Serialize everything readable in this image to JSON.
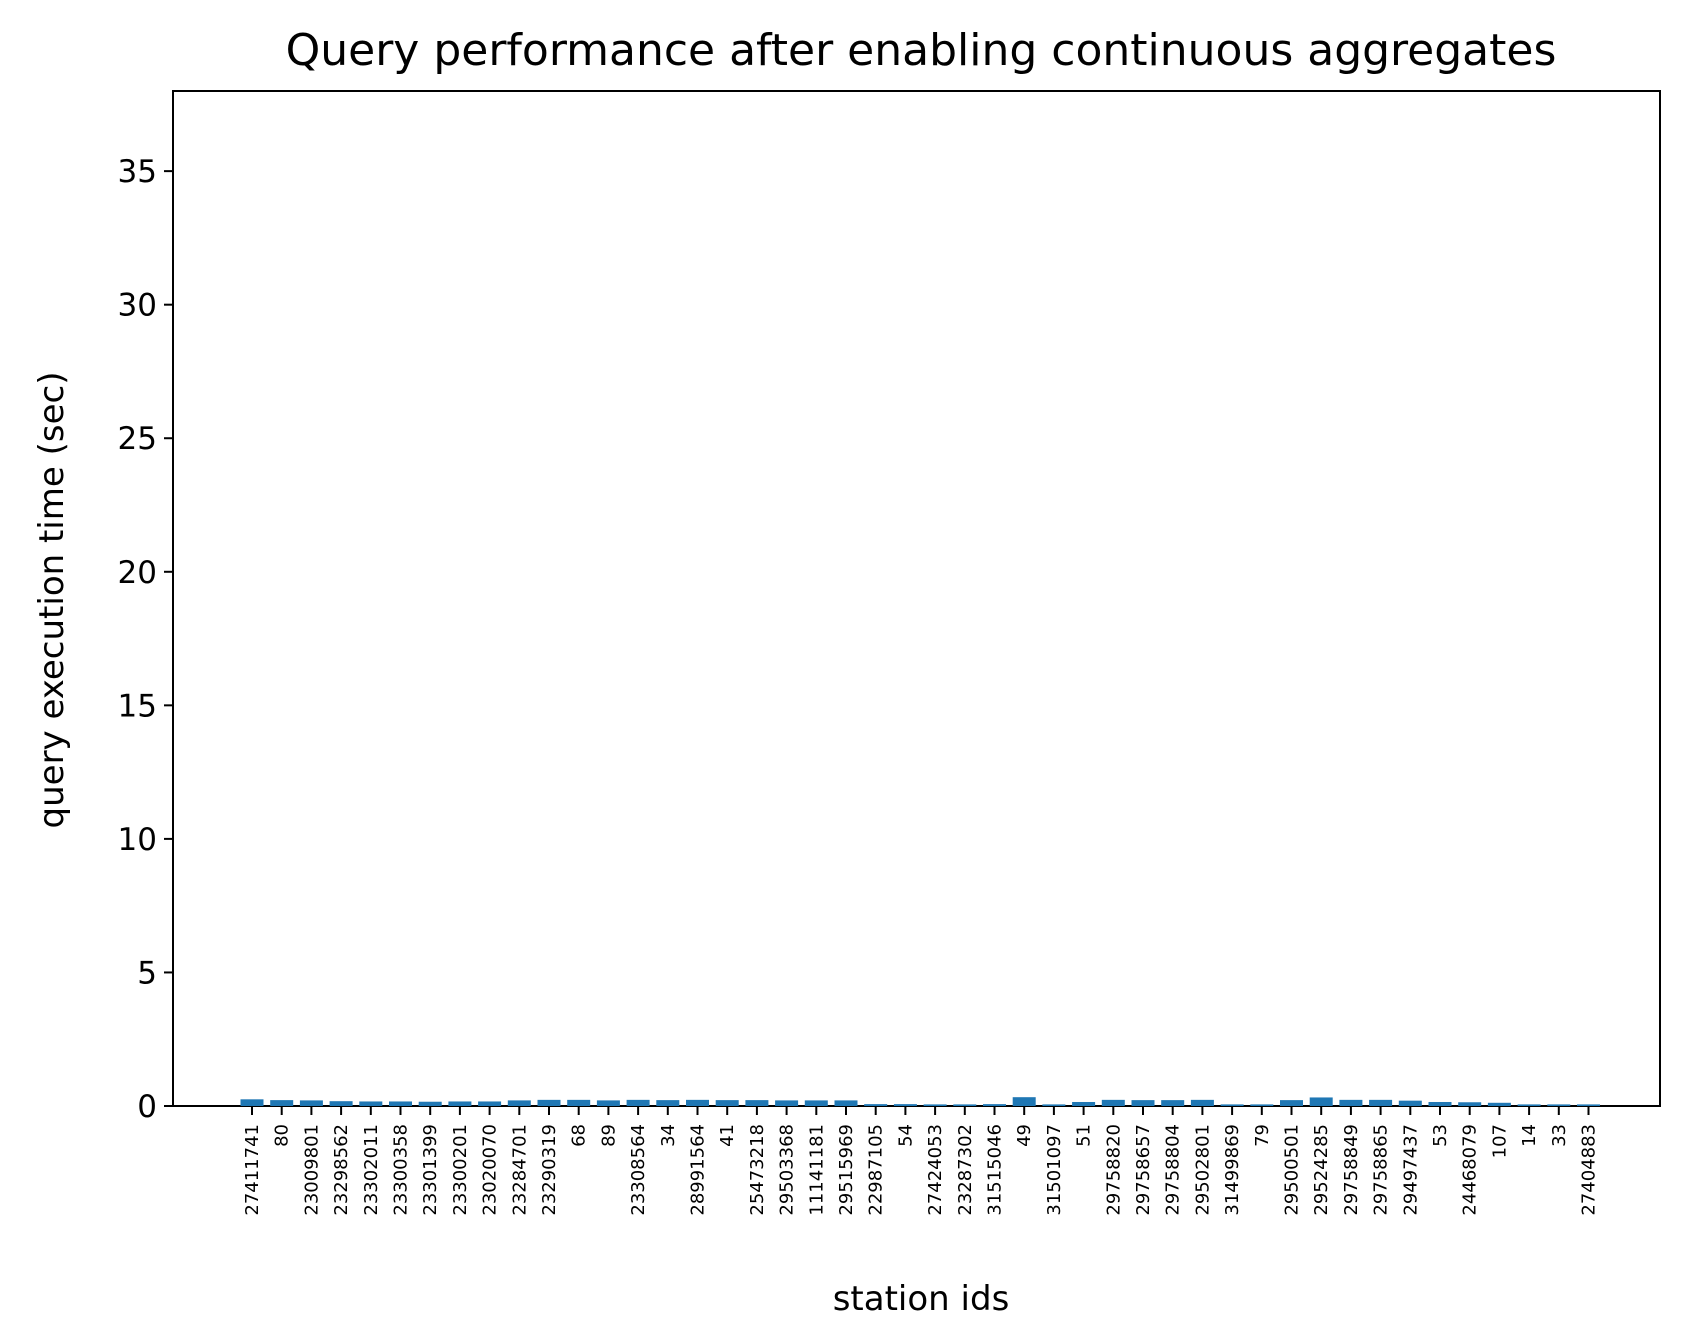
{
  "chart_data": {
    "type": "bar",
    "title": "Query performance after enabling continuous aggregates",
    "xlabel": "station ids",
    "ylabel": "query execution time (sec)",
    "ylim": [
      0,
      38
    ],
    "yticks": [
      0,
      5,
      10,
      15,
      20,
      25,
      30,
      35
    ],
    "grid": false,
    "bar_color": "#1f77b4",
    "categories": [
      "27411741",
      "80",
      "23009801",
      "23298562",
      "23302011",
      "23300358",
      "23301399",
      "23300201",
      "23020070",
      "23284701",
      "23290319",
      "68",
      "89",
      "23308564",
      "34",
      "28991564",
      "41",
      "25473218",
      "29503368",
      "11141181",
      "29515969",
      "22987105",
      "54",
      "27424053",
      "23287302",
      "31515046",
      "49",
      "31501097",
      "51",
      "29758820",
      "29758657",
      "29758804",
      "29502801",
      "31499869",
      "79",
      "29500501",
      "29524285",
      "29758849",
      "29758865",
      "29497437",
      "53",
      "24468079",
      "107",
      "14",
      "33",
      "27404883"
    ],
    "values": [
      0.25,
      0.22,
      0.21,
      0.18,
      0.17,
      0.17,
      0.16,
      0.17,
      0.17,
      0.21,
      0.23,
      0.23,
      0.21,
      0.23,
      0.22,
      0.23,
      0.22,
      0.22,
      0.21,
      0.21,
      0.21,
      0.07,
      0.07,
      0.06,
      0.06,
      0.07,
      0.33,
      0.06,
      0.15,
      0.23,
      0.22,
      0.22,
      0.23,
      0.06,
      0.06,
      0.22,
      0.32,
      0.23,
      0.23,
      0.2,
      0.15,
      0.14,
      0.12,
      0.06,
      0.06,
      0.06
    ]
  }
}
